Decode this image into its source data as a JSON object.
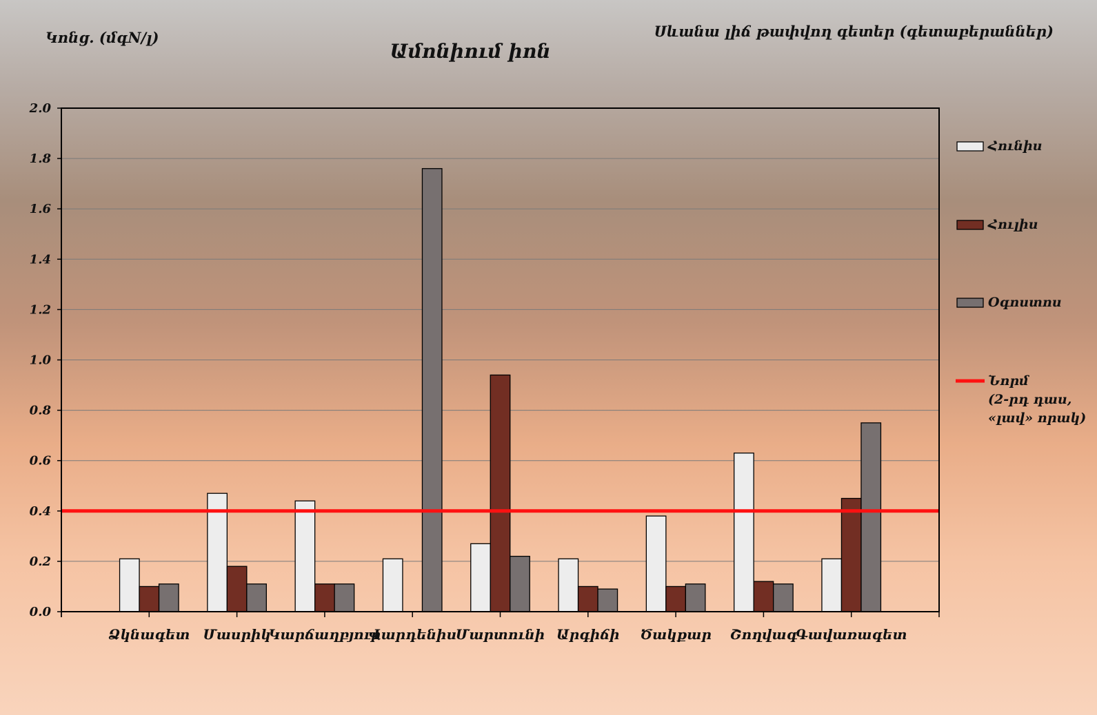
{
  "chart_data": {
    "type": "bar",
    "title": "Ամոնիում իոն",
    "subtitle": "Սևանա լիճ թափվող գետեր (գետաբերաններ)",
    "ylabel": "Կոնց. (մգN/լ)",
    "xlabel": "",
    "ylim": [
      0,
      2.0
    ],
    "yticks": [
      "0.0",
      "0.2",
      "0.4",
      "0.6",
      "0.8",
      "1.0",
      "1.2",
      "1.4",
      "1.6",
      "1.8",
      "2.0"
    ],
    "grid": true,
    "legend_position": "right",
    "categories": [
      "Ձկնագետ",
      "Մասրիկ",
      "Կարճաղբյուր",
      "Վարդենիս",
      "Մարտունի",
      "Արգիճի",
      "Ծակքար",
      "Շողվագ",
      "Գավառագետ"
    ],
    "series": [
      {
        "name": "Հունիս",
        "color": "#ededed",
        "values": [
          0.21,
          0.47,
          0.44,
          0.21,
          0.27,
          0.21,
          0.38,
          0.63,
          0.21
        ]
      },
      {
        "name": "Հուլիս",
        "color": "#722e23",
        "values": [
          0.1,
          0.18,
          0.11,
          null,
          0.94,
          0.1,
          0.1,
          0.12,
          0.45
        ]
      },
      {
        "name": "Օգոստոս",
        "color": "#777070",
        "values": [
          0.11,
          0.11,
          0.11,
          1.76,
          0.22,
          0.09,
          0.11,
          0.11,
          0.75
        ]
      }
    ],
    "reference_line": {
      "value": 0.4,
      "color": "#ff1111",
      "label_lines": [
        "Նորմ",
        "(2-րդ դաս,",
        "«լավ» որակ)"
      ]
    }
  }
}
